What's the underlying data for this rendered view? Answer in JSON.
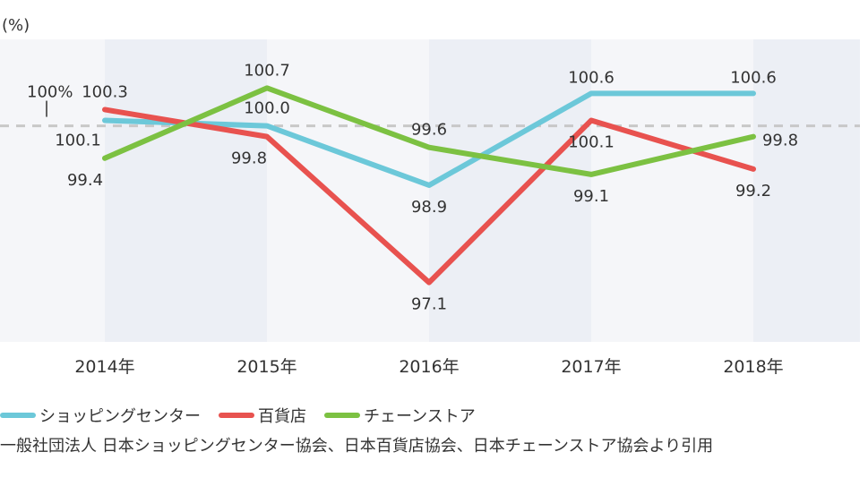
{
  "unit_label": "(%)",
  "source_note": "一般社団法人 日本ショッピングセンター協会、日本百貨店協会、日本チェーンストア協会より引用",
  "reference": {
    "label": "100%",
    "value": 100
  },
  "chart_data": {
    "type": "line",
    "categories": [
      "2014年",
      "2015年",
      "2016年",
      "2017年",
      "2018年"
    ],
    "ylim": [
      96,
      101.6
    ],
    "series": [
      {
        "name": "ショッピングセンター",
        "color": "#6cc8d9",
        "values": [
          100.1,
          100.0,
          98.9,
          100.6,
          100.6
        ]
      },
      {
        "name": "百貨店",
        "color": "#e8524f",
        "values": [
          100.3,
          99.8,
          97.1,
          100.1,
          99.2
        ]
      },
      {
        "name": "チェーンストア",
        "color": "#7cc142",
        "values": [
          99.4,
          100.7,
          99.6,
          99.1,
          99.8
        ]
      }
    ]
  }
}
